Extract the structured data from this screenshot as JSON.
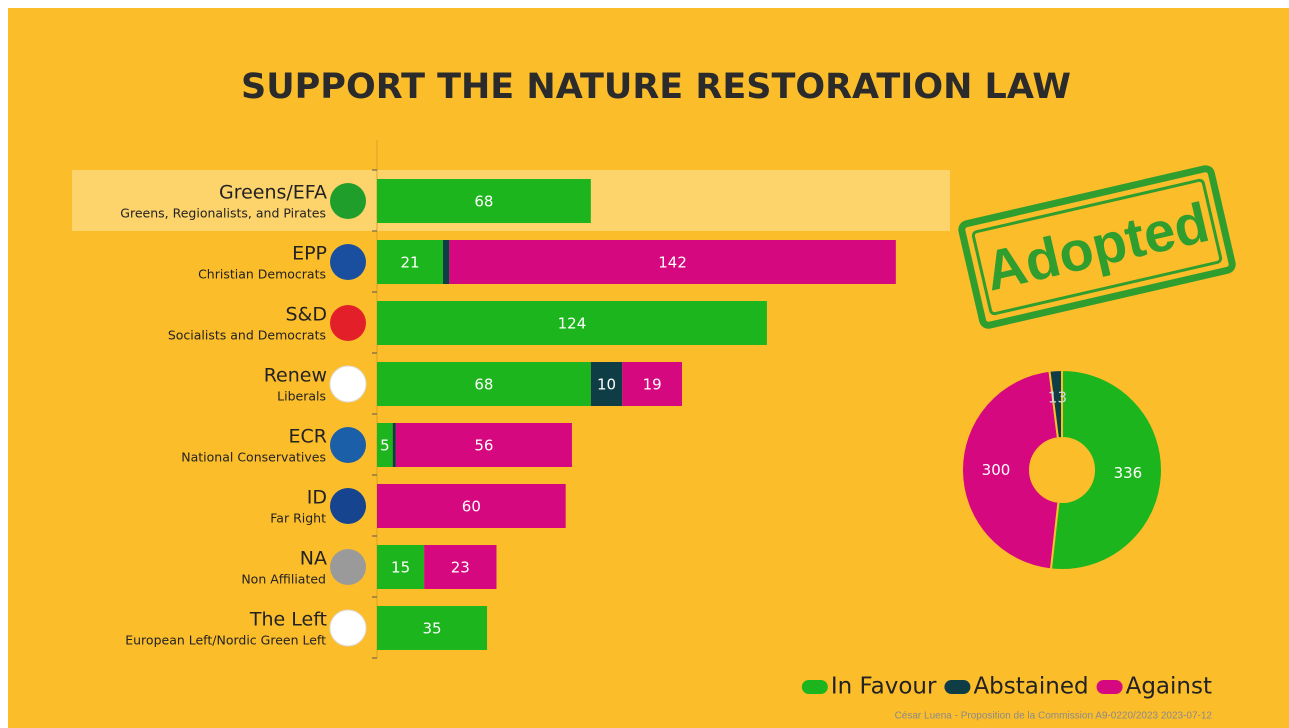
{
  "title": "SUPPORT THE NATURE RESTORATION LAW",
  "stamp": "Adopted",
  "credit": "César Luena - Proposition de la Commission A9-0220/2023 2023-07-12",
  "chart_data": [
    {
      "type": "bar",
      "orientation": "horizontal",
      "stacked": true,
      "categories": [
        "Greens/EFA",
        "EPP",
        "S&D",
        "Renew",
        "ECR",
        "ID",
        "NA",
        "The Left"
      ],
      "subtitles": [
        "Greens, Regionalists, and Pirates",
        "Christian Democrats",
        "Socialists and Democrats",
        "Liberals",
        "National Conservatives",
        "Far Right",
        "Non Affiliated",
        "European Left/Nordic Green Left"
      ],
      "logo_colors": [
        "#1f9e2c",
        "#1a4fa0",
        "#e3202a",
        "#ffffff",
        "#1a5fa8",
        "#17448f",
        "#9a9a9a",
        "#ffffff"
      ],
      "series": [
        {
          "name": "In Favour",
          "color": "#1db51d",
          "values": [
            68,
            21,
            124,
            68,
            5,
            0,
            15,
            35
          ]
        },
        {
          "name": "Abstained",
          "color": "#0f3d46",
          "values": [
            0,
            2,
            0,
            10,
            1,
            0,
            0,
            0
          ]
        },
        {
          "name": "Against",
          "color": "#d6087f",
          "values": [
            0,
            142,
            0,
            19,
            56,
            60,
            23,
            0
          ]
        }
      ],
      "xlim": [
        0,
        180
      ],
      "legend": "bottom-right"
    },
    {
      "type": "pie",
      "donut": true,
      "values": [
        336,
        300,
        13
      ],
      "colors": [
        "#1db51d",
        "#d6087f",
        "#0f3d46"
      ]
    }
  ]
}
